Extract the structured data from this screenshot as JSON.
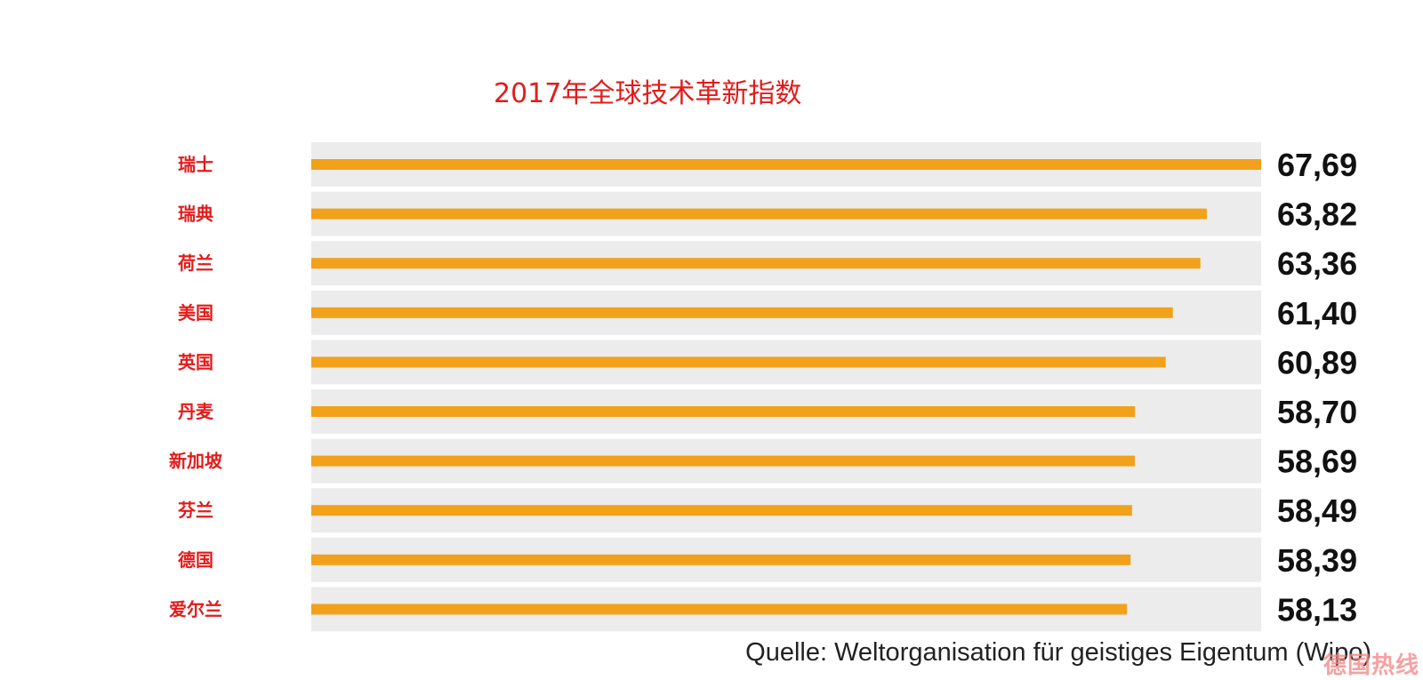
{
  "colors": {
    "bar": "#f2a11a",
    "row_bg": "#ececec",
    "title": "#e31b1b",
    "category_label": "#e31b1b",
    "value_label": "#111111",
    "source": "#222222"
  },
  "chart_data": {
    "type": "bar",
    "orientation": "horizontal",
    "title": "2017年全球技术革新指数",
    "categories": [
      "瑞士",
      "瑞典",
      "荷兰",
      "美国",
      "英国",
      "丹麦",
      "新加坡",
      "芬兰",
      "德国",
      "爱尔兰"
    ],
    "values": [
      67.69,
      63.82,
      63.36,
      61.4,
      60.89,
      58.7,
      58.69,
      58.49,
      58.39,
      58.13
    ],
    "value_labels": [
      "67,69",
      "63,82",
      "63,36",
      "61,40",
      "60,89",
      "58,70",
      "58,69",
      "58,49",
      "58,39",
      "58,13"
    ],
    "grid": false,
    "legend": "none"
  },
  "source": "Quelle: Weltorganisation für geistiges Eigentum (Wipo)",
  "watermark": "德国热线"
}
